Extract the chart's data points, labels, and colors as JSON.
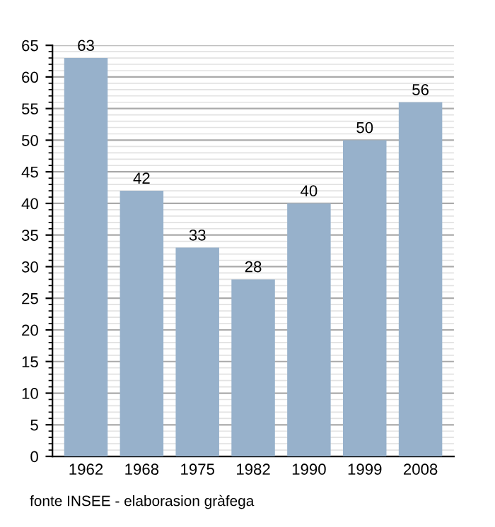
{
  "chart_data": {
    "type": "bar",
    "categories": [
      "1962",
      "1968",
      "1975",
      "1982",
      "1990",
      "1999",
      "2008"
    ],
    "values": [
      63,
      42,
      33,
      28,
      40,
      50,
      56
    ],
    "color": "#97b1cb",
    "data_labels": true,
    "ylim": [
      0,
      65
    ],
    "yticks": [
      0,
      5,
      10,
      15,
      20,
      25,
      30,
      35,
      40,
      45,
      50,
      55,
      60,
      65
    ],
    "grid": "y",
    "annotations": [
      "fonte INSEE - elaborasion gràfega"
    ]
  }
}
